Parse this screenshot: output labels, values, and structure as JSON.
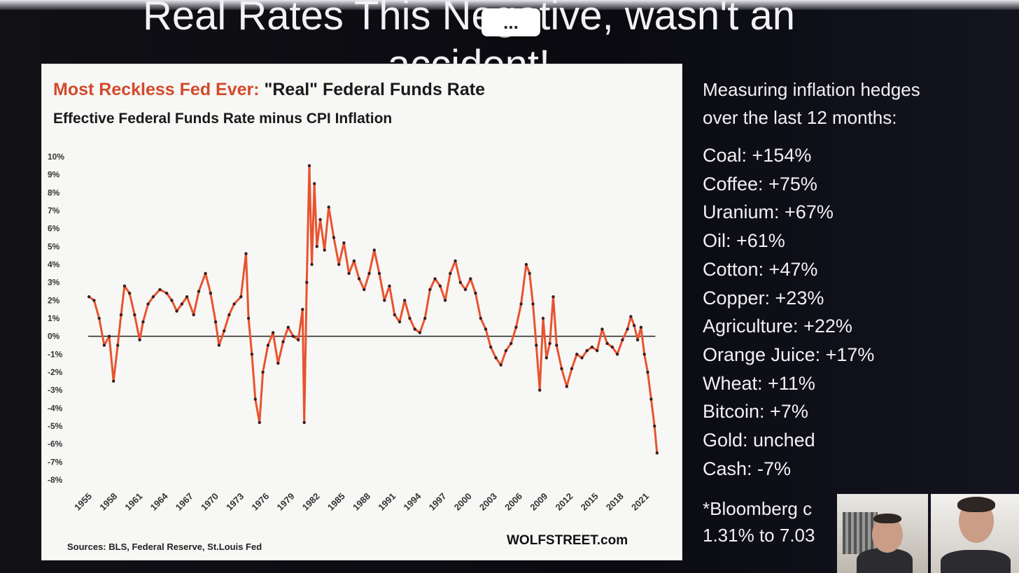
{
  "slide": {
    "title_line1": "Real Rates This Negative, wasn't an",
    "title_line2": "accident!",
    "more_label": "..."
  },
  "chart": {
    "title_highlight": "Most Reckless Fed Ever:",
    "title_rest": " \"Real\" Federal Funds Rate",
    "subtitle": "Effective Federal Funds Rate minus CPI Inflation",
    "source": "Sources: BLS, Federal Reserve, St.Louis Fed",
    "brand": "WOLFSTREET.com"
  },
  "chart_data": {
    "type": "line",
    "title": "Most Reckless Fed Ever: \"Real\" Federal Funds Rate",
    "subtitle": "Effective Federal Funds Rate minus CPI Inflation",
    "ylim": [
      -8,
      10
    ],
    "y_ticks": [
      "10%",
      "9%",
      "8%",
      "7%",
      "6%",
      "5%",
      "4%",
      "3%",
      "2%",
      "1%",
      "0%",
      "-1%",
      "-2%",
      "-3%",
      "-4%",
      "-5%",
      "-6%",
      "-7%",
      "-8%"
    ],
    "x_ticks": [
      "1955",
      "1958",
      "1961",
      "1964",
      "1967",
      "1970",
      "1973",
      "1976",
      "1979",
      "1982",
      "1985",
      "1988",
      "1991",
      "1994",
      "1997",
      "2000",
      "2003",
      "2006",
      "2009",
      "2012",
      "2015",
      "2018",
      "2021"
    ],
    "xlim": [
      1954.5,
      2022.0
    ],
    "zero_line": true,
    "line_color": "#e8532f",
    "marker_color": "#3a1f1f",
    "x": [
      1954.6,
      1955.2,
      1955.8,
      1956.4,
      1957.0,
      1957.5,
      1958.0,
      1958.4,
      1958.8,
      1959.4,
      1960.0,
      1960.6,
      1961.0,
      1961.6,
      1962.2,
      1963.0,
      1963.8,
      1964.4,
      1965.0,
      1965.6,
      1966.2,
      1967.0,
      1967.6,
      1968.4,
      1969.0,
      1969.6,
      1970.0,
      1970.6,
      1971.2,
      1971.8,
      1972.6,
      1973.2,
      1973.5,
      1973.9,
      1974.3,
      1974.8,
      1975.2,
      1975.8,
      1976.4,
      1977.0,
      1977.6,
      1978.2,
      1978.8,
      1979.4,
      1979.9,
      1980.1,
      1980.4,
      1980.7,
      1981.0,
      1981.3,
      1981.6,
      1982.0,
      1982.5,
      1983.0,
      1983.6,
      1984.2,
      1984.8,
      1985.4,
      1986.0,
      1986.6,
      1987.2,
      1987.8,
      1988.4,
      1989.0,
      1989.6,
      1990.2,
      1990.8,
      1991.4,
      1992.0,
      1992.6,
      1993.2,
      1993.8,
      1994.4,
      1995.0,
      1995.6,
      1996.2,
      1996.8,
      1997.4,
      1998.0,
      1998.6,
      1999.2,
      1999.8,
      2000.4,
      2001.0,
      2001.6,
      2002.2,
      2002.8,
      2003.4,
      2004.0,
      2004.6,
      2005.2,
      2005.8,
      2006.4,
      2006.8,
      2007.2,
      2007.6,
      2008.0,
      2008.4,
      2008.8,
      2009.2,
      2009.6,
      2010.0,
      2010.6,
      2011.2,
      2011.8,
      2012.4,
      2013.0,
      2013.6,
      2014.2,
      2014.8,
      2015.4,
      2016.0,
      2016.6,
      2017.2,
      2017.8,
      2018.4,
      2018.8,
      2019.2,
      2019.6,
      2020.0,
      2020.4,
      2020.8,
      2021.2,
      2021.6,
      2021.9
    ],
    "y": [
      2.2,
      2.0,
      1.0,
      -0.5,
      0.0,
      -2.5,
      -0.5,
      1.2,
      2.8,
      2.4,
      1.2,
      -0.2,
      0.8,
      1.8,
      2.2,
      2.6,
      2.4,
      2.0,
      1.4,
      1.8,
      2.2,
      1.2,
      2.5,
      3.5,
      2.4,
      0.8,
      -0.5,
      0.3,
      1.2,
      1.8,
      2.2,
      4.6,
      1.0,
      -1.0,
      -3.5,
      -4.8,
      -2.0,
      -0.5,
      0.2,
      -1.5,
      -0.3,
      0.5,
      0.0,
      -0.2,
      1.5,
      -4.8,
      3.0,
      9.5,
      4.0,
      8.5,
      5.0,
      6.5,
      4.8,
      7.2,
      5.5,
      4.0,
      5.2,
      3.5,
      4.2,
      3.2,
      2.6,
      3.5,
      4.8,
      3.5,
      2.0,
      2.8,
      1.2,
      0.8,
      2.0,
      1.0,
      0.4,
      0.2,
      1.0,
      2.6,
      3.2,
      2.8,
      2.0,
      3.5,
      4.2,
      3.0,
      2.6,
      3.2,
      2.4,
      1.0,
      0.4,
      -0.6,
      -1.2,
      -1.6,
      -0.8,
      -0.4,
      0.5,
      1.8,
      4.0,
      3.5,
      1.8,
      -0.5,
      -3.0,
      1.0,
      -1.2,
      -0.4,
      2.2,
      -0.5,
      -1.8,
      -2.8,
      -1.8,
      -1.0,
      -1.2,
      -0.8,
      -0.6,
      -0.8,
      0.4,
      -0.4,
      -0.6,
      -1.0,
      -0.2,
      0.4,
      1.1,
      0.6,
      -0.2,
      0.5,
      -1.0,
      -2.0,
      -3.5,
      -5.0,
      -6.5
    ]
  },
  "hedges": {
    "heading_line1": "Measuring inflation hedges",
    "heading_line2": "over the last 12 months:",
    "items": [
      "Coal: +154%",
      "Coffee: +75%",
      "Uranium: +67%",
      "Oil: +61%",
      "Cotton: +47%",
      "Copper: +23%",
      "Agriculture: +22%",
      "Orange Juice: +17%",
      "Wheat: +11%",
      "Bitcoin: +7%",
      "Gold: unched",
      "Cash: -7%"
    ],
    "footnote_line1": "*Bloomberg c",
    "footnote_line2": "1.31% to 7.03"
  }
}
